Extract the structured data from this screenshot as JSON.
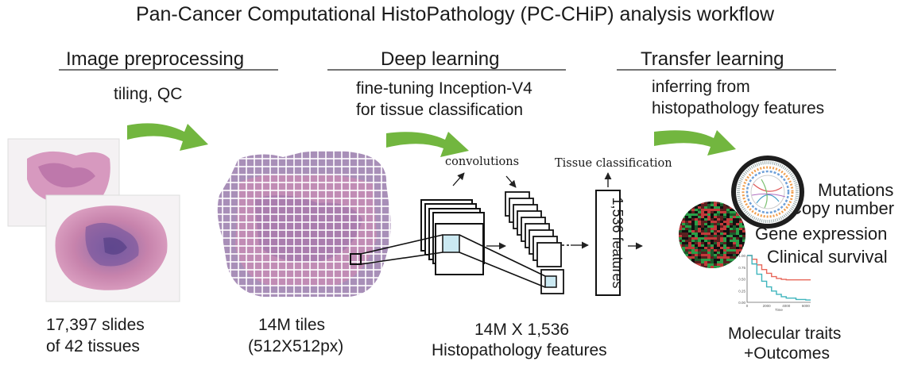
{
  "title": "Pan-Cancer Computational HistoPathology (PC-CHiP) analysis workflow",
  "stages": [
    {
      "heading": "Image preprocessing",
      "description": [
        "tiling, QC"
      ]
    },
    {
      "heading": "Deep learning",
      "description": [
        "fine-tuning Inception-V4",
        "for tissue classification"
      ]
    },
    {
      "heading": "Transfer learning",
      "description": [
        "inferring from",
        "histopathology features"
      ]
    }
  ],
  "network": {
    "convolutions_label": "convolutions",
    "tissue_classification_label": "Tissue classification",
    "features_box_label": "1,536 features"
  },
  "captions": {
    "slides": [
      "17,397 slides",
      "of 42 tissues"
    ],
    "tiles": [
      "14M tiles",
      "(512X512px)"
    ],
    "features": [
      "14M X 1,536",
      "Histopathology features"
    ],
    "outcomes": [
      "Molecular traits",
      "+Outcomes"
    ]
  },
  "traits": [
    "Mutations",
    "Copy number",
    "Gene expression",
    "Clinical survival"
  ],
  "survival_plot": {
    "x_ticks": [
      "0",
      "2000",
      "4000",
      "6000"
    ],
    "x_label": "Time",
    "y_ticks": [
      "1.00",
      "0.75",
      "0.50",
      "0.25",
      "0.00"
    ],
    "curves": [
      {
        "color": "#e8675a",
        "points": [
          [
            0,
            1.0
          ],
          [
            500,
            0.92
          ],
          [
            1000,
            0.8
          ],
          [
            1500,
            0.7
          ],
          [
            2000,
            0.62
          ],
          [
            2500,
            0.55
          ],
          [
            3000,
            0.51
          ],
          [
            3500,
            0.49
          ],
          [
            4000,
            0.48
          ],
          [
            6500,
            0.48
          ]
        ]
      },
      {
        "color": "#3fb5bd",
        "points": [
          [
            0,
            1.0
          ],
          [
            500,
            0.82
          ],
          [
            1000,
            0.6
          ],
          [
            1500,
            0.45
          ],
          [
            2000,
            0.33
          ],
          [
            2500,
            0.24
          ],
          [
            3000,
            0.17
          ],
          [
            3500,
            0.12
          ],
          [
            4000,
            0.09
          ],
          [
            5000,
            0.06
          ],
          [
            6000,
            0.05
          ],
          [
            6500,
            0.05
          ]
        ]
      }
    ]
  },
  "colors": {
    "arrow_green": "#72b63f",
    "tissue_pink": "#c47fa8",
    "tissue_purple": "#6a4f9a",
    "highlight_blue": "#cbe9f2"
  }
}
